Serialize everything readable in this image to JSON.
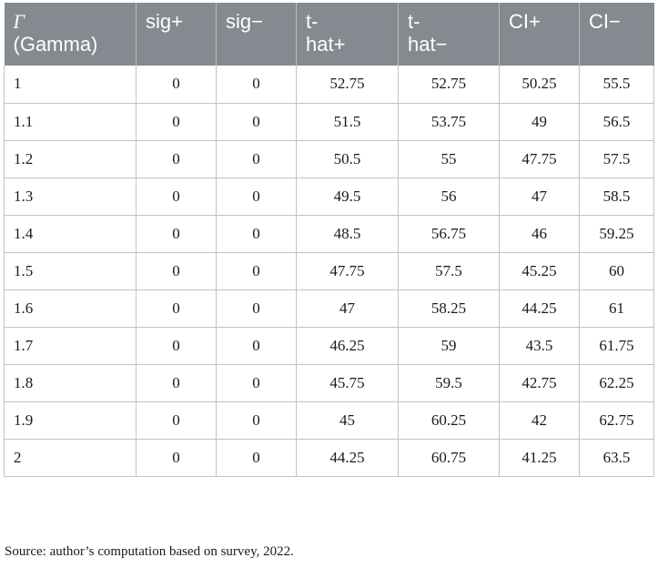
{
  "table": {
    "headers": [
      {
        "symbol": "Γ",
        "label": "(Gamma)"
      },
      {
        "label": "sig+"
      },
      {
        "label": "sig−"
      },
      {
        "line1": "t-",
        "line2": "hat+"
      },
      {
        "line1": "t-",
        "line2": "hat−"
      },
      {
        "label": "CI+"
      },
      {
        "label": "CI−"
      }
    ],
    "rows": [
      [
        "1",
        "0",
        "0",
        "52.75",
        "52.75",
        "50.25",
        "55.5"
      ],
      [
        "1.1",
        "0",
        "0",
        "51.5",
        "53.75",
        "49",
        "56.5"
      ],
      [
        "1.2",
        "0",
        "0",
        "50.5",
        "55",
        "47.75",
        "57.5"
      ],
      [
        "1.3",
        "0",
        "0",
        "49.5",
        "56",
        "47",
        "58.5"
      ],
      [
        "1.4",
        "0",
        "0",
        "48.5",
        "56.75",
        "46",
        "59.25"
      ],
      [
        "1.5",
        "0",
        "0",
        "47.75",
        "57.5",
        "45.25",
        "60"
      ],
      [
        "1.6",
        "0",
        "0",
        "47",
        "58.25",
        "44.25",
        "61"
      ],
      [
        "1.7",
        "0",
        "0",
        "46.25",
        "59",
        "43.5",
        "61.75"
      ],
      [
        "1.8",
        "0",
        "0",
        "45.75",
        "59.5",
        "42.75",
        "62.25"
      ],
      [
        "1.9",
        "0",
        "0",
        "45",
        "60.25",
        "42",
        "62.75"
      ],
      [
        "2",
        "0",
        "0",
        "44.25",
        "60.75",
        "41.25",
        "63.5"
      ]
    ]
  },
  "source_note": "Source: author’s computation based on survey, 2022.",
  "colors": {
    "header_bg": "#848a8f",
    "header_text": "#ffffff",
    "grid_line": "#bfc3c6"
  }
}
